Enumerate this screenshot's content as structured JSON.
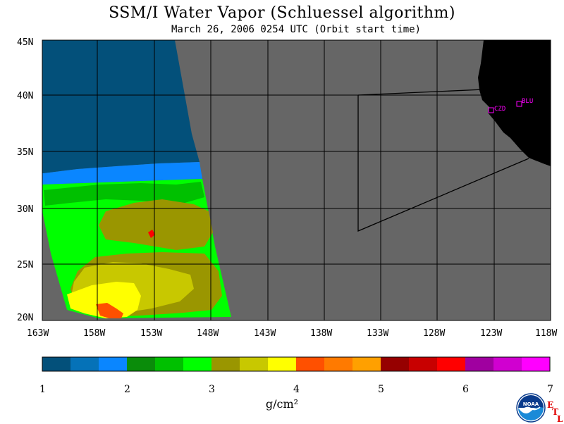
{
  "title": "SSM/I Water Vapor (Schluessel algorithm)",
  "subtitle": "March 26, 2006  0254 UTC  (Orbit start time)",
  "map": {
    "lat_ticks": [
      "45N",
      "40N",
      "35N",
      "30N",
      "25N",
      "20N"
    ],
    "lon_ticks": [
      "163W",
      "158W",
      "153W",
      "148W",
      "143W",
      "138W",
      "133W",
      "128W",
      "123W",
      "118W"
    ],
    "stations": [
      {
        "label": "CZD",
        "lon": -123.1,
        "lat": 38.6
      },
      {
        "label": "BLU",
        "lon": -120.7,
        "lat": 39.3
      }
    ],
    "colors": {
      "no_data": "#666666",
      "land": "#000000",
      "grid": "#000000",
      "station": "#ff00ff"
    }
  },
  "colorbar": {
    "ticks": [
      "1",
      "2",
      "3",
      "4",
      "5",
      "6",
      "7"
    ],
    "unit": "g/cm²",
    "colors": [
      "#03507a",
      "#0572b8",
      "#0a86ff",
      "#0a8c0a",
      "#00c000",
      "#00ff00",
      "#9a9600",
      "#c8c800",
      "#ffff00",
      "#ff5000",
      "#ff7a00",
      "#ffa000",
      "#960000",
      "#c80000",
      "#ff0000",
      "#a000a0",
      "#d000d0",
      "#ff00ff"
    ]
  },
  "logo": {
    "text": "NOAA",
    "etl_letters": [
      "E",
      "T",
      "L"
    ]
  }
}
